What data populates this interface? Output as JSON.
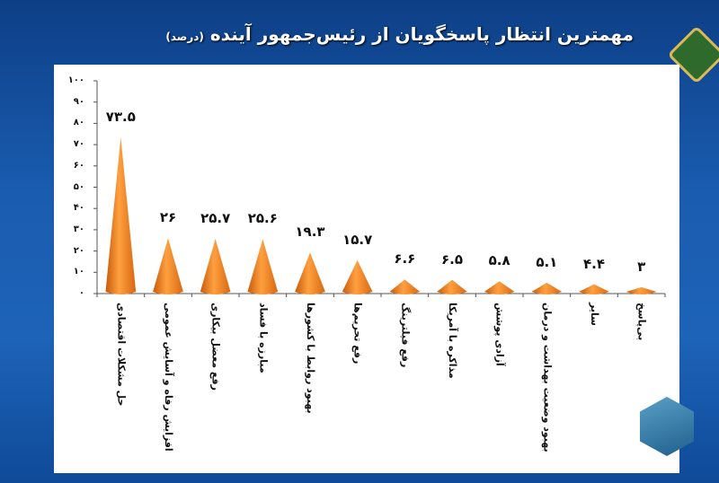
{
  "title": "مهمترین انتظار پاسخگویان از رئیس‌جمهور آینده",
  "unit": "(درصد)",
  "colors": {
    "cone": "#f07d1a",
    "cone_dark": "#b94c05",
    "background": "#1a5cb0"
  },
  "icons": {
    "top_logo": "ghadir-logo",
    "bottom_logo": "mehr-logo"
  },
  "chart_data": {
    "type": "bar",
    "bar_shape": "cone",
    "categories": [
      "حل مشکلات اقتصادی",
      "افزایش رفاه و آسایش عمومی",
      "رفع معضل بیکاری",
      "مبارزه با فساد",
      "بهبود روابط با کشورها",
      "رفع تحریم‌ها",
      "رفع فیلترینگ",
      "مذاکره با آمریکا",
      "آزادی پوشش",
      "بهبود وضعیت بهداشت و درمان",
      "سایر",
      "بی‌پاسخ"
    ],
    "values": [
      73.5,
      26,
      25.7,
      25.6,
      19.3,
      15.7,
      6.6,
      6.5,
      5.8,
      5.1,
      4.4,
      3
    ],
    "data_labels": [
      "۷۳.۵",
      "۲۶",
      "۲۵.۷",
      "۲۵.۶",
      "۱۹.۳",
      "۱۵.۷",
      "۶.۶",
      "۶.۵",
      "۵.۸",
      "۵.۱",
      "۴.۴",
      "۳"
    ],
    "ylim": [
      0,
      100
    ],
    "yticks": [
      0,
      10,
      20,
      30,
      40,
      50,
      60,
      70,
      80,
      90,
      100
    ],
    "ytick_labels": [
      "٠",
      "۱۰",
      "۲۰",
      "۳۰",
      "۴۰",
      "۵۰",
      "۶۰",
      "۷۰",
      "۸۰",
      "۹۰",
      "۱۰۰"
    ],
    "grid": false,
    "xlabel": "",
    "ylabel": ""
  }
}
